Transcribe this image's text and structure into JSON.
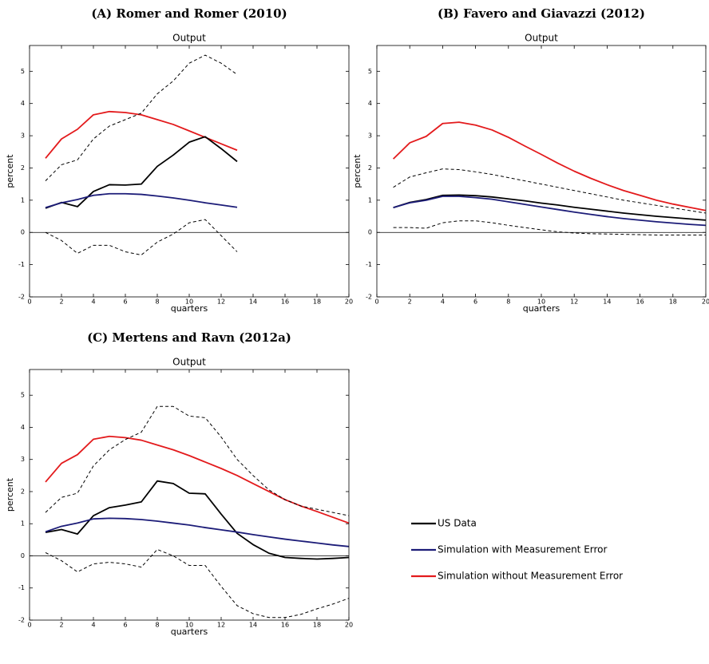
{
  "chart_data": [
    {
      "type": "line",
      "title": "(A) Romer and Romer (2010)",
      "subtitle": "Output",
      "xlabel": "quarters",
      "ylabel": "percent",
      "x": [
        1,
        2,
        3,
        4,
        5,
        6,
        7,
        8,
        9,
        10,
        11,
        12,
        13
      ],
      "xlim": [
        0,
        20
      ],
      "ylim": [
        -2,
        5.8
      ],
      "xticks": [
        0,
        2,
        4,
        6,
        8,
        10,
        12,
        14,
        16,
        18,
        20
      ],
      "yticks": [
        -2,
        -1,
        0,
        1,
        2,
        3,
        4,
        5
      ],
      "reference_line": 0,
      "series": [
        {
          "color": "#e31a1c",
          "values": [
            2.3,
            2.9,
            3.2,
            3.65,
            3.75,
            3.72,
            3.65,
            3.5,
            3.35,
            3.15,
            2.95,
            2.75,
            2.55
          ]
        },
        {
          "color": "#000000",
          "values": [
            0.75,
            0.93,
            0.8,
            1.27,
            1.48,
            1.47,
            1.5,
            2.05,
            2.4,
            2.8,
            2.97,
            2.6,
            2.2
          ]
        },
        {
          "color": "#1c1c78",
          "values": [
            0.77,
            0.92,
            1.02,
            1.15,
            1.2,
            1.2,
            1.18,
            1.13,
            1.07,
            1.0,
            0.92,
            0.85,
            0.78
          ]
        },
        {
          "color": "#000000",
          "dashed": true,
          "values": [
            1.6,
            2.1,
            2.25,
            2.9,
            3.3,
            3.5,
            3.7,
            4.3,
            4.7,
            5.25,
            5.5,
            5.25,
            4.9
          ]
        },
        {
          "color": "#000000",
          "dashed": true,
          "values": [
            0.0,
            -0.25,
            -0.65,
            -0.4,
            -0.4,
            -0.6,
            -0.7,
            -0.3,
            -0.05,
            0.3,
            0.4,
            -0.1,
            -0.6
          ]
        }
      ]
    },
    {
      "type": "line",
      "title": "(B) Favero and Giavazzi (2012)",
      "subtitle": "Output",
      "xlabel": "quarters",
      "ylabel": "percent",
      "x": [
        1,
        2,
        3,
        4,
        5,
        6,
        7,
        8,
        9,
        10,
        11,
        12,
        13,
        14,
        15,
        16,
        17,
        18,
        19,
        20
      ],
      "xlim": [
        0,
        20
      ],
      "ylim": [
        -2,
        5.8
      ],
      "xticks": [
        0,
        2,
        4,
        6,
        8,
        10,
        12,
        14,
        16,
        18,
        20
      ],
      "yticks": [
        -2,
        -1,
        0,
        1,
        2,
        3,
        4,
        5
      ],
      "reference_line": 0,
      "series": [
        {
          "color": "#e31a1c",
          "values": [
            2.28,
            2.78,
            2.98,
            3.38,
            3.42,
            3.33,
            3.18,
            2.95,
            2.68,
            2.42,
            2.15,
            1.9,
            1.68,
            1.48,
            1.3,
            1.15,
            1.0,
            0.88,
            0.78,
            0.68
          ]
        },
        {
          "color": "#000000",
          "values": [
            0.77,
            0.93,
            1.02,
            1.15,
            1.16,
            1.14,
            1.1,
            1.04,
            0.98,
            0.91,
            0.85,
            0.78,
            0.72,
            0.66,
            0.6,
            0.55,
            0.5,
            0.46,
            0.42,
            0.38
          ]
        },
        {
          "color": "#1c1c78",
          "values": [
            0.77,
            0.92,
            1.0,
            1.12,
            1.12,
            1.08,
            1.03,
            0.95,
            0.87,
            0.79,
            0.71,
            0.63,
            0.56,
            0.49,
            0.43,
            0.38,
            0.33,
            0.29,
            0.25,
            0.22
          ]
        },
        {
          "color": "#000000",
          "dashed": true,
          "values": [
            1.4,
            1.72,
            1.85,
            1.97,
            1.95,
            1.88,
            1.8,
            1.7,
            1.6,
            1.5,
            1.4,
            1.3,
            1.2,
            1.1,
            1.0,
            0.92,
            0.84,
            0.76,
            0.68,
            0.6
          ]
        },
        {
          "color": "#000000",
          "dashed": true,
          "values": [
            0.15,
            0.15,
            0.13,
            0.3,
            0.36,
            0.36,
            0.3,
            0.22,
            0.15,
            0.08,
            0.02,
            -0.02,
            -0.04,
            -0.05,
            -0.06,
            -0.07,
            -0.08,
            -0.08,
            -0.08,
            -0.08
          ]
        }
      ]
    },
    {
      "type": "line",
      "title": "(C) Mertens and Ravn (2012a)",
      "subtitle": "Output",
      "xlabel": "quarters",
      "ylabel": "percent",
      "x": [
        1,
        2,
        3,
        4,
        5,
        6,
        7,
        8,
        9,
        10,
        11,
        12,
        13,
        14,
        15,
        16,
        17,
        18,
        19,
        20
      ],
      "xlim": [
        0,
        20
      ],
      "ylim": [
        -2,
        5.8
      ],
      "xticks": [
        0,
        2,
        4,
        6,
        8,
        10,
        12,
        14,
        16,
        18,
        20
      ],
      "yticks": [
        -2,
        -1,
        0,
        1,
        2,
        3,
        4,
        5
      ],
      "reference_line": 0,
      "legend": "outside right",
      "series": [
        {
          "name": "Simulation without Measurement Error",
          "color": "#e31a1c",
          "values": [
            2.3,
            2.88,
            3.15,
            3.63,
            3.72,
            3.68,
            3.6,
            3.45,
            3.3,
            3.12,
            2.92,
            2.72,
            2.5,
            2.25,
            2.0,
            1.75,
            1.55,
            1.38,
            1.2,
            1.02
          ]
        },
        {
          "name": "US Data",
          "color": "#000000",
          "values": [
            0.73,
            0.82,
            0.68,
            1.25,
            1.5,
            1.58,
            1.68,
            2.33,
            2.25,
            1.95,
            1.93,
            1.3,
            0.7,
            0.35,
            0.08,
            -0.05,
            -0.08,
            -0.1,
            -0.08,
            -0.05
          ]
        },
        {
          "name": "Simulation with Measurement Error",
          "color": "#1c1c78",
          "values": [
            0.75,
            0.92,
            1.02,
            1.15,
            1.17,
            1.16,
            1.13,
            1.08,
            1.02,
            0.96,
            0.88,
            0.81,
            0.74,
            0.66,
            0.59,
            0.52,
            0.46,
            0.4,
            0.34,
            0.29
          ]
        },
        {
          "color": "#000000",
          "dashed": true,
          "values": [
            1.35,
            1.82,
            1.95,
            2.8,
            3.3,
            3.62,
            3.85,
            4.65,
            4.65,
            4.35,
            4.3,
            3.7,
            3.0,
            2.5,
            2.05,
            1.75,
            1.55,
            1.45,
            1.35,
            1.25
          ]
        },
        {
          "color": "#000000",
          "dashed": true,
          "values": [
            0.1,
            -0.15,
            -0.5,
            -0.25,
            -0.2,
            -0.25,
            -0.35,
            0.2,
            0.0,
            -0.3,
            -0.3,
            -0.95,
            -1.55,
            -1.8,
            -1.92,
            -1.92,
            -1.82,
            -1.65,
            -1.5,
            -1.32
          ]
        }
      ]
    }
  ]
}
